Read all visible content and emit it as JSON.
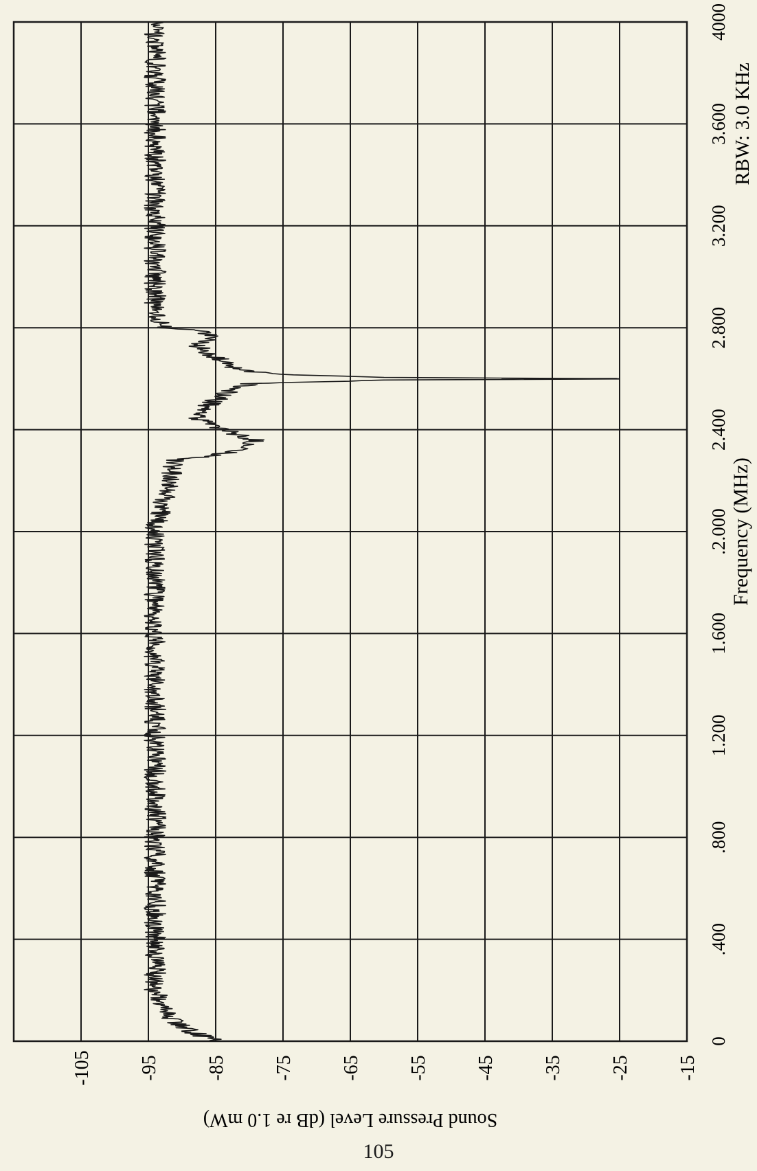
{
  "page": {
    "number": "105"
  },
  "chart_data": {
    "type": "line",
    "orientation": "rotated 90 degrees clockwise (x axis runs top to bottom)",
    "xlabel": "Frequency (MHz)",
    "ylabel": "Sound Pressure Level (dB re 1.0 mW)",
    "annotation": "RBW: 3.0 KHz",
    "xlim": [
      0,
      4000
    ],
    "ylim": [
      -115,
      -15
    ],
    "x_ticks": [
      "0",
      ".400",
      ".800",
      "1.200",
      "1.600",
      ".2.000",
      "2.400",
      "2.800",
      "3.200",
      "3.600",
      "4000"
    ],
    "x_tick_values": [
      0,
      400,
      800,
      1200,
      1600,
      2000,
      2400,
      2800,
      3200,
      3600,
      4000
    ],
    "y_ticks": [
      "-15",
      "-25",
      "-35",
      "-45",
      "-55",
      "-65",
      "-75",
      "-85",
      "-95",
      "-105"
    ],
    "y_tick_values": [
      -15,
      -25,
      -35,
      -45,
      -55,
      -65,
      -75,
      -85,
      -95,
      -105
    ],
    "grid": true,
    "legend": "none",
    "colors": {
      "trace": "#1a1a1a",
      "grid": "#1a1a1a",
      "paper": "#f4f2e4"
    },
    "series": [
      {
        "x": [
          0,
          10,
          30,
          60,
          100,
          150,
          200,
          300,
          400,
          600,
          800,
          1000,
          1200,
          1400,
          1600,
          1800,
          2000,
          2100,
          2200,
          2280,
          2300,
          2330,
          2360,
          2380,
          2400,
          2420,
          2450,
          2500,
          2550,
          2580,
          2595,
          2600,
          2605,
          2620,
          2650,
          2700,
          2740,
          2760,
          2790,
          2800,
          2900,
          3000,
          3200,
          3400,
          3600,
          3800,
          4000
        ],
        "y": [
          -85,
          -86,
          -88,
          -90,
          -92,
          -93,
          -94,
          -94,
          -94,
          -94,
          -94,
          -94,
          -94,
          -94,
          -94,
          -94,
          -94,
          -93,
          -92,
          -91,
          -85,
          -80,
          -79,
          -82,
          -84,
          -86,
          -88,
          -86,
          -83,
          -80,
          -60,
          -25,
          -60,
          -78,
          -83,
          -86,
          -88,
          -85,
          -87,
          -93,
          -94,
          -94,
          -94,
          -94,
          -94,
          -94,
          -94
        ]
      }
    ]
  }
}
